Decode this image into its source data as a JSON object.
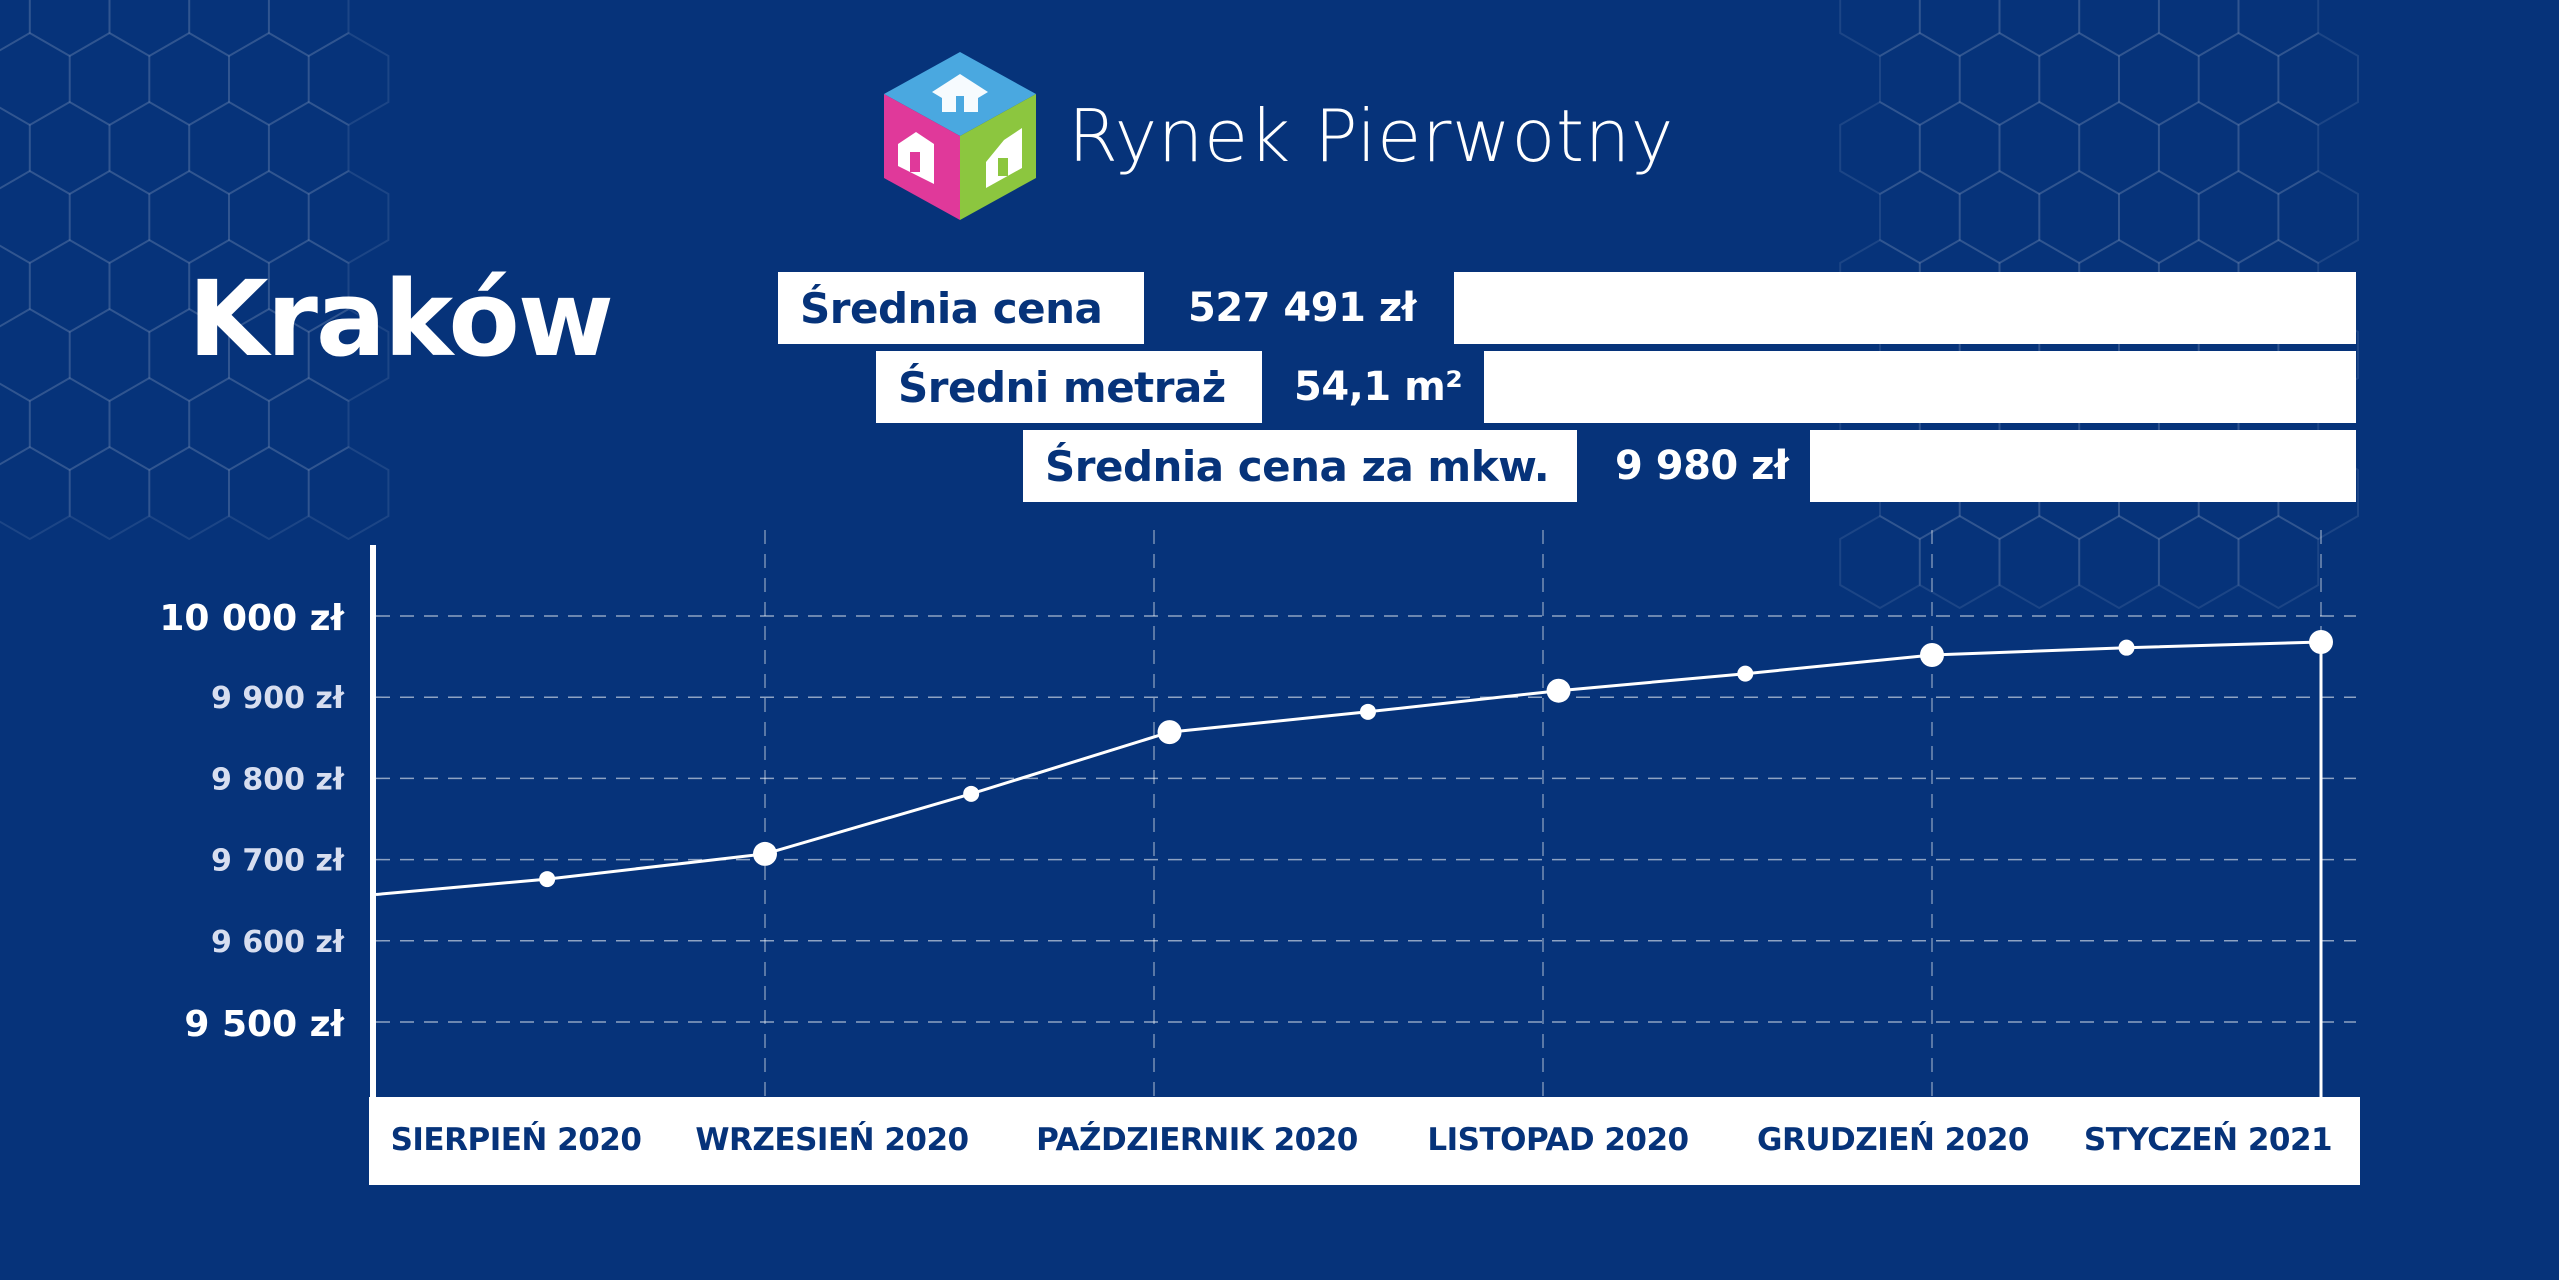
{
  "logo": {
    "name": "Rynek Pierwotny"
  },
  "colors": {
    "background": "#06337a",
    "panel": "#ffffff",
    "line": "#ffffff",
    "logo_top": "#4aa8e0",
    "logo_left": "#e0399a",
    "logo_right": "#8cc63f"
  },
  "city": "Kraków",
  "stats": [
    {
      "label": "Średnia cena",
      "value": "527 491 zł"
    },
    {
      "label": "Średni metraż",
      "value": "54,1 m²"
    },
    {
      "label": "Średnia cena za mkw.",
      "value": "9 980 zł"
    }
  ],
  "chart_data": {
    "type": "line",
    "categories": [
      "SIERPIEŃ 2020",
      "WRZESIEŃ 2020",
      "PAŹDZIERNIK 2020",
      "LISTOPAD 2020",
      "GRUDZIEŃ 2020",
      "STYCZEŃ 2021"
    ],
    "ylim": [
      9500,
      10000
    ],
    "y_ticks": [
      {
        "value": 10000,
        "label": "10 000 zł"
      },
      {
        "value": 9900,
        "label": "9 900 zł"
      },
      {
        "value": 9800,
        "label": "9 800 zł"
      },
      {
        "value": 9700,
        "label": "9 700 zł"
      },
      {
        "value": 9600,
        "label": "9 600 zł"
      },
      {
        "value": 9500,
        "label": "9 500 zł"
      }
    ],
    "grid": true,
    "points": [
      {
        "x": 0.0,
        "y": 9657,
        "marker": "none"
      },
      {
        "x": 0.44,
        "y": 9676,
        "marker": "small"
      },
      {
        "x": 1.0,
        "y": 9707,
        "marker": "large"
      },
      {
        "x": 1.53,
        "y": 9781,
        "marker": "small"
      },
      {
        "x": 2.04,
        "y": 9857,
        "marker": "large"
      },
      {
        "x": 2.55,
        "y": 9882,
        "marker": "small"
      },
      {
        "x": 3.04,
        "y": 9908,
        "marker": "large"
      },
      {
        "x": 3.52,
        "y": 9929,
        "marker": "small"
      },
      {
        "x": 4.0,
        "y": 9952,
        "marker": "large"
      },
      {
        "x": 4.5,
        "y": 9961,
        "marker": "small"
      },
      {
        "x": 5.0,
        "y": 9968,
        "marker": "large"
      }
    ]
  }
}
